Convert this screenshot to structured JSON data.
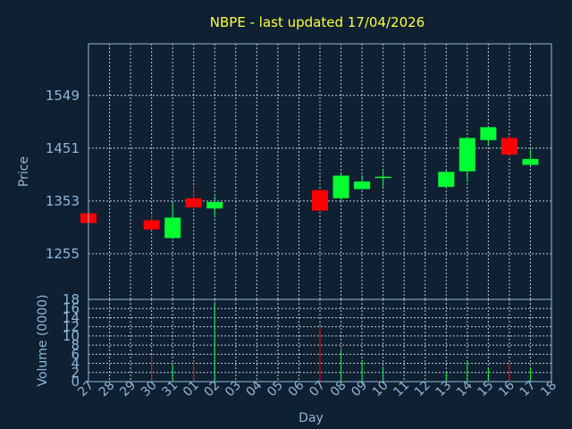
{
  "chart_data": {
    "type": "candlestick",
    "title": "NBPE - last updated 17/04/2026",
    "ylabel": "Price",
    "volume_label": "Volume (0000)",
    "xlabel": "Day",
    "price_ticks": [
      "1549",
      "1451",
      "1353",
      "1255"
    ],
    "price_tick_values": [
      1549,
      1451,
      1353,
      1255
    ],
    "price_ylim": [
      1170,
      1645
    ],
    "volume_ticks": [
      "18",
      "16",
      "14",
      "12",
      "10",
      "8",
      "6",
      "4",
      "2",
      "0"
    ],
    "volume_tick_values": [
      18,
      16,
      14,
      12,
      10,
      8,
      6,
      4,
      2,
      0
    ],
    "volume_ylim": [
      0,
      18
    ],
    "x_labels": [
      "27",
      "28",
      "29",
      "30",
      "31",
      "01",
      "02",
      "03",
      "04",
      "05",
      "06",
      "07",
      "08",
      "09",
      "10",
      "11",
      "12",
      "13",
      "14",
      "15",
      "16",
      "17",
      "18"
    ],
    "grid": true,
    "colors": {
      "up": "#00ff33",
      "down": "#ff0000",
      "background": "#0f2033",
      "frame": "#8fb7d9",
      "title": "#ffff33",
      "grid": "#d8e6f2"
    },
    "candles": [
      {
        "x": "27",
        "open": 1330,
        "close": 1312,
        "high": 1331,
        "low": 1311
      },
      {
        "x": "30",
        "open": 1317,
        "close": 1300,
        "high": 1328,
        "low": 1299
      },
      {
        "x": "31",
        "open": 1284,
        "close": 1322,
        "high": 1350,
        "low": 1282
      },
      {
        "x": "01",
        "open": 1358,
        "close": 1341,
        "high": 1381,
        "low": 1338
      },
      {
        "x": "02",
        "open": 1339,
        "close": 1351,
        "high": 1362,
        "low": 1322
      },
      {
        "x": "07",
        "open": 1373,
        "close": 1335,
        "high": 1375,
        "low": 1334
      },
      {
        "x": "08",
        "open": 1358,
        "close": 1400,
        "high": 1403,
        "low": 1353
      },
      {
        "x": "09",
        "open": 1375,
        "close": 1389,
        "high": 1401,
        "low": 1374
      },
      {
        "x": "10",
        "open": 1396,
        "close": 1398,
        "high": 1410,
        "low": 1377
      },
      {
        "x": "13",
        "open": 1379,
        "close": 1407,
        "high": 1410,
        "low": 1377
      },
      {
        "x": "14",
        "open": 1408,
        "close": 1470,
        "high": 1472,
        "low": 1388
      },
      {
        "x": "15",
        "open": 1466,
        "close": 1490,
        "high": 1491,
        "low": 1455
      },
      {
        "x": "16",
        "open": 1470,
        "close": 1439,
        "high": 1475,
        "low": 1436
      },
      {
        "x": "17",
        "open": 1420,
        "close": 1431,
        "high": 1448,
        "low": 1419
      }
    ],
    "volumes": [
      {
        "x": "30",
        "value": 5.9,
        "dir": "down"
      },
      {
        "x": "31",
        "value": 4.0,
        "dir": "up"
      },
      {
        "x": "01",
        "value": 4.6,
        "dir": "down"
      },
      {
        "x": "02",
        "value": 17.4,
        "dir": "up"
      },
      {
        "x": "07",
        "value": 12.0,
        "dir": "down"
      },
      {
        "x": "08",
        "value": 7.2,
        "dir": "up"
      },
      {
        "x": "09",
        "value": 4.6,
        "dir": "up"
      },
      {
        "x": "10",
        "value": 3.3,
        "dir": "up"
      },
      {
        "x": "13",
        "value": 2.2,
        "dir": "up"
      },
      {
        "x": "14",
        "value": 4.5,
        "dir": "up"
      },
      {
        "x": "15",
        "value": 3.0,
        "dir": "up"
      },
      {
        "x": "16",
        "value": 3.8,
        "dir": "down"
      },
      {
        "x": "17",
        "value": 3.1,
        "dir": "up"
      }
    ]
  }
}
